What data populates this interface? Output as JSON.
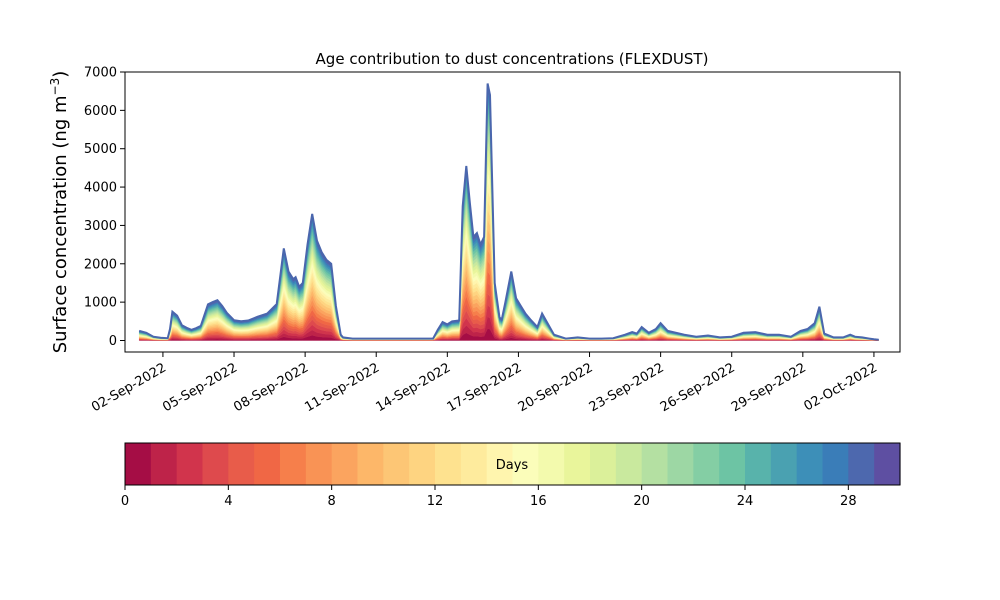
{
  "chart_data": {
    "type": "area",
    "title": "Age contribution to dust concentrations (FLEXDUST)",
    "ylabel": "Surface concentration (ng m",
    "ylabel_sup": "−3",
    "ylabel_close": ")",
    "ylim": [
      -300,
      7000
    ],
    "yticks": [
      0,
      1000,
      2000,
      3000,
      4000,
      5000,
      6000,
      7000
    ],
    "xlim": [
      -0.6,
      32.1
    ],
    "x_origin": "01-Sep-2022",
    "xticks": [
      {
        "day": 1,
        "label": "02-Sep-2022"
      },
      {
        "day": 4,
        "label": "05-Sep-2022"
      },
      {
        "day": 7,
        "label": "08-Sep-2022"
      },
      {
        "day": 10,
        "label": "11-Sep-2022"
      },
      {
        "day": 13,
        "label": "14-Sep-2022"
      },
      {
        "day": 16,
        "label": "17-Sep-2022"
      },
      {
        "day": 19,
        "label": "20-Sep-2022"
      },
      {
        "day": 22,
        "label": "23-Sep-2022"
      },
      {
        "day": 25,
        "label": "26-Sep-2022"
      },
      {
        "day": 28,
        "label": "29-Sep-2022"
      },
      {
        "day": 31,
        "label": "02-Oct-2022"
      }
    ],
    "total": {
      "x": [
        0,
        0.3,
        0.6,
        0.9,
        1.2,
        1.3,
        1.4,
        1.6,
        1.8,
        2.0,
        2.2,
        2.4,
        2.6,
        2.9,
        3.1,
        3.3,
        3.5,
        3.7,
        4.0,
        4.3,
        4.6,
        5.0,
        5.4,
        5.8,
        6.1,
        6.3,
        6.5,
        6.6,
        6.75,
        6.9,
        7.1,
        7.3,
        7.5,
        7.7,
        7.8,
        7.9,
        8.1,
        8.3,
        8.5,
        8.6,
        9.0,
        9.5,
        10.0,
        10.5,
        11.0,
        11.5,
        12.0,
        12.4,
        12.6,
        12.8,
        13.0,
        13.2,
        13.5,
        13.65,
        13.8,
        13.95,
        14.1,
        14.25,
        14.4,
        14.55,
        14.7,
        14.8,
        15.0,
        15.2,
        15.3,
        15.45,
        15.7,
        15.9,
        16.1,
        16.3,
        16.5,
        16.8,
        17.0,
        17.5,
        18.0,
        18.5,
        19.0,
        19.5,
        20.0,
        20.5,
        20.8,
        21.0,
        21.2,
        21.5,
        21.8,
        22.0,
        22.3,
        23.0,
        23.5,
        24.0,
        24.5,
        25.0,
        25.5,
        26.0,
        26.5,
        27.0,
        27.5,
        27.9,
        28.2,
        28.5,
        28.7,
        28.9,
        29.3,
        29.7,
        30.0,
        30.2,
        30.5,
        30.8,
        31.0,
        31.2
      ],
      "y": [
        250,
        200,
        100,
        70,
        60,
        300,
        750,
        650,
        400,
        330,
        280,
        320,
        380,
        940,
        1000,
        1050,
        900,
        720,
        530,
        500,
        520,
        620,
        700,
        950,
        2400,
        1800,
        1600,
        1650,
        1400,
        1500,
        2500,
        3300,
        2600,
        2300,
        2200,
        2100,
        2000,
        900,
        150,
        80,
        50,
        50,
        50,
        50,
        50,
        50,
        50,
        50,
        280,
        480,
        420,
        500,
        520,
        3500,
        4550,
        3600,
        2700,
        2800,
        2500,
        2700,
        6700,
        6400,
        1500,
        600,
        550,
        1000,
        1800,
        1100,
        900,
        700,
        550,
        350,
        700,
        150,
        50,
        80,
        50,
        50,
        60,
        150,
        220,
        180,
        350,
        200,
        300,
        450,
        250,
        150,
        100,
        130,
        80,
        100,
        200,
        220,
        150,
        150,
        100,
        250,
        300,
        450,
        880,
        180,
        80,
        80,
        150,
        100,
        80,
        50,
        30,
        20
      ]
    },
    "colorbar": {
      "label": "Days",
      "min": 0,
      "max": 30,
      "ticks": [
        0,
        4,
        8,
        12,
        16,
        20,
        24,
        28
      ],
      "colors": [
        "#a50d45",
        "#be2349",
        "#d1344c",
        "#de4a4d",
        "#e85c4a",
        "#f06745",
        "#f67f4b",
        "#f99355",
        "#fba45f",
        "#fdb769",
        "#fdc675",
        "#fed481",
        "#fee28f",
        "#feeb9d",
        "#fff5ae",
        "#fbfdba",
        "#f3faad",
        "#e9f59b",
        "#dbf09a",
        "#c9e99e",
        "#b4e0a2",
        "#9dd7a4",
        "#84cea4",
        "#6dc4a4",
        "#58b3ab",
        "#4aa1b1",
        "#3d8fb8",
        "#3a7db8",
        "#4d68ae",
        "#5e4fa2"
      ]
    }
  }
}
